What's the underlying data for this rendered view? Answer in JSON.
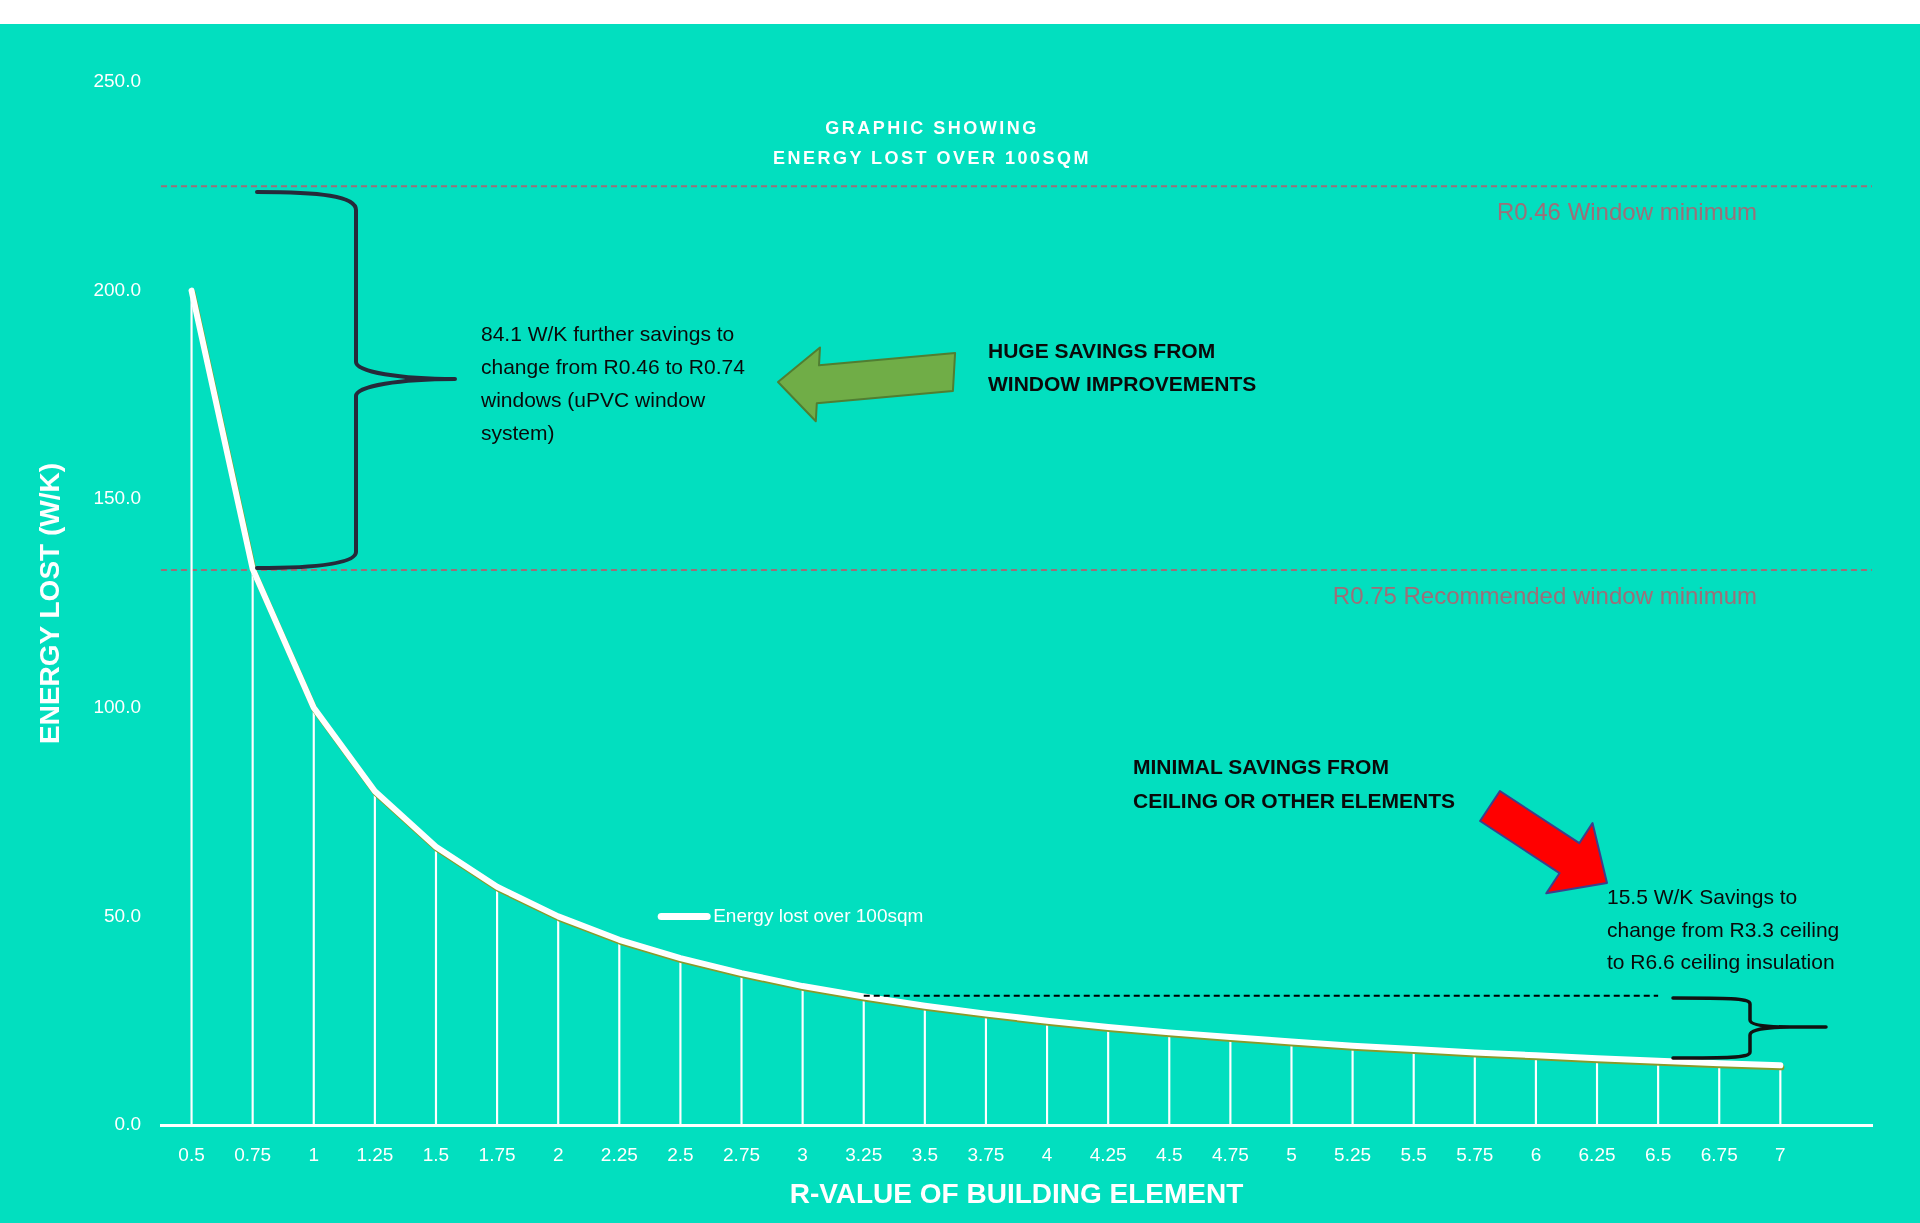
{
  "chart_data": {
    "type": "line",
    "title": "GRAPHIC SHOWING\nENERGY LOST OVER 100SQM",
    "xlabel": "R-VALUE OF BUILDING ELEMENT",
    "ylabel": "ENERGY LOST (W/K)",
    "categories": [
      "0.5",
      "0.75",
      "1",
      "1.25",
      "1.5",
      "1.75",
      "2",
      "2.25",
      "2.5",
      "2.75",
      "3",
      "3.25",
      "3.5",
      "3.75",
      "4",
      "4.25",
      "4.5",
      "4.75",
      "5",
      "5.25",
      "5.5",
      "5.75",
      "6",
      "6.25",
      "6.5",
      "6.75",
      "7",
      null
    ],
    "series": [
      {
        "name": "Energy lost over 100sqm",
        "color": "#ffffff",
        "values": [
          200,
          133.3,
          100,
          80,
          66.7,
          57.1,
          50,
          44.4,
          40,
          36.4,
          33.3,
          30.8,
          28.6,
          26.7,
          25,
          23.5,
          22.2,
          21.1,
          20,
          19,
          18.2,
          17.4,
          16.7,
          16,
          15.4,
          14.8,
          14.3,
          null
        ]
      },
      {
        "type": "line",
        "color": "#000000",
        "line_style": "dashed",
        "values": [
          null,
          null,
          null,
          null,
          null,
          null,
          null,
          null,
          null,
          null,
          null,
          31,
          31,
          31,
          31,
          31,
          31,
          31,
          31,
          31,
          31,
          31,
          31,
          31,
          31,
          null,
          null,
          null
        ]
      },
      {
        "type": "bar",
        "color": "#ffffff",
        "values": [
          200,
          133.3,
          100,
          80,
          66.7,
          57.1,
          50,
          44.4,
          40,
          36.4,
          33.3,
          30.8,
          28.6,
          26.7,
          25,
          23.5,
          22.2,
          21.1,
          20,
          19,
          18.2,
          17.4,
          16.7,
          16,
          15.4,
          14.8,
          14.3,
          null
        ]
      }
    ],
    "ylim": [
      0,
      250
    ],
    "yticks": [
      {
        "value": 0,
        "label": "0.0"
      },
      {
        "value": 50,
        "label": "50.0"
      },
      {
        "value": 100,
        "label": "100.0"
      },
      {
        "value": 150,
        "label": "150.0"
      },
      {
        "value": 200,
        "label": "200.0"
      },
      {
        "value": 250,
        "label": "250.0"
      }
    ],
    "legend": "bottom left",
    "ref_lines": [
      {
        "axis": "y",
        "value": 225,
        "label": "R0.46 Window minimum",
        "color": "#9d6f78",
        "line_style": "dashed"
      },
      {
        "axis": "y",
        "value": 133,
        "label": "R0.75 Recommended window minimum",
        "color": "#9d6f78",
        "line_style": "dashed"
      }
    ],
    "annotations": [
      "84.1 W/K further savings to change from R0.46 to R0.74 windows (uPVC window system)",
      "HUGE SAVINGS FROM\nWINDOW IMPROVEMENTS",
      "MINIMAL SAVINGS FROM\nCEILING OR OTHER ELEMENTS",
      "15.5 W/K Savings to\nchange from R3.3 ceiling\nto R6.6 ceiling insulation"
    ]
  }
}
